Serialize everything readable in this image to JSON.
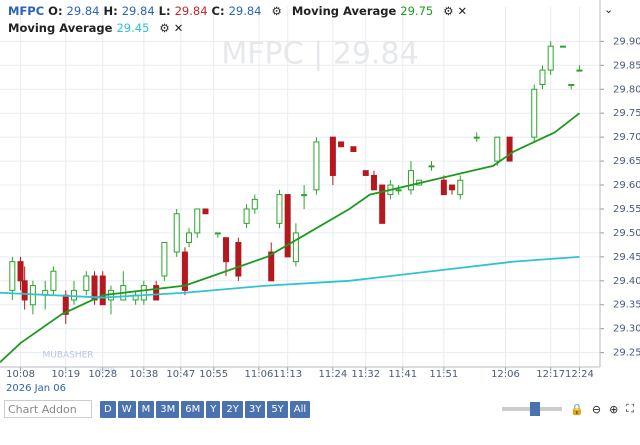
{
  "chart_data": {
    "type": "candlestick",
    "symbol": "MFPC",
    "ohlc_labels": [
      "O:",
      "H:",
      "L:",
      "C:"
    ],
    "ohlc_values": [
      29.84,
      29.84,
      29.84,
      29.84
    ],
    "watermark": "MFPC | 29.84",
    "logo": [
      "MUBASHER",
      "TRADE"
    ],
    "date_label": "2026 Jan 06",
    "up_color": "#2aa52a",
    "down_color": "#b3191e",
    "x": [
      "10:06",
      "10:08",
      "10:09",
      "10:11",
      "10:14",
      "10:16",
      "10:19",
      "10:21",
      "10:24",
      "10:26",
      "10:28",
      "10:30",
      "10:33",
      "10:36",
      "10:38",
      "10:41",
      "10:43",
      "10:46",
      "10:48",
      "10:49",
      "10:51",
      "10:53",
      "10:56",
      "10:58",
      "11:01",
      "11:03",
      "11:05",
      "11:09",
      "11:11",
      "11:13",
      "11:15",
      "11:17",
      "11:20",
      "11:24",
      "11:26",
      "11:29",
      "11:32",
      "11:34",
      "11:36",
      "11:38",
      "11:40",
      "11:43",
      "11:45",
      "11:48",
      "11:51",
      "11:53",
      "11:55",
      "11:59",
      "12:04",
      "12:07",
      "12:13",
      "12:15",
      "12:17",
      "12:20",
      "12:22",
      "12:24"
    ],
    "open": [
      29.38,
      29.44,
      29.4,
      29.35,
      29.37,
      29.38,
      29.37,
      29.36,
      29.38,
      29.41,
      29.41,
      29.36,
      29.36,
      29.36,
      29.36,
      29.39,
      29.41,
      29.46,
      29.46,
      29.48,
      29.5,
      29.55,
      29.5,
      29.49,
      29.48,
      29.52,
      29.55,
      29.46,
      29.52,
      29.58,
      29.44,
      29.58,
      29.59,
      29.7,
      29.69,
      29.68,
      29.63,
      29.62,
      29.6,
      29.58,
      29.59,
      29.59,
      29.6,
      29.64,
      29.61,
      29.6,
      29.58,
      29.7,
      29.65,
      29.7,
      29.7,
      29.81,
      29.84,
      29.89,
      29.81,
      29.84
    ],
    "high": [
      29.45,
      29.45,
      29.43,
      29.4,
      29.4,
      29.43,
      29.38,
      29.4,
      29.42,
      29.42,
      29.42,
      29.39,
      29.42,
      29.38,
      29.4,
      29.4,
      29.48,
      29.55,
      29.47,
      29.51,
      29.55,
      29.55,
      29.5,
      29.49,
      29.49,
      29.56,
      29.58,
      29.48,
      29.59,
      29.58,
      29.52,
      29.6,
      29.7,
      29.7,
      29.69,
      29.68,
      29.63,
      29.63,
      29.6,
      29.61,
      29.6,
      29.65,
      29.61,
      29.65,
      29.62,
      29.6,
      29.62,
      29.71,
      29.7,
      29.7,
      29.81,
      29.85,
      29.9,
      29.89,
      29.81,
      29.85
    ],
    "low": [
      29.36,
      29.38,
      29.34,
      29.33,
      29.34,
      29.37,
      29.31,
      29.35,
      29.37,
      29.35,
      29.35,
      29.33,
      29.36,
      29.35,
      29.35,
      29.36,
      29.4,
      29.45,
      29.37,
      29.47,
      29.49,
      29.54,
      29.49,
      29.41,
      29.4,
      29.51,
      29.54,
      29.4,
      29.51,
      29.45,
      29.43,
      29.55,
      29.58,
      29.6,
      29.68,
      29.67,
      29.62,
      29.59,
      29.52,
      29.57,
      29.58,
      29.58,
      29.6,
      29.63,
      29.58,
      29.58,
      29.57,
      29.69,
      29.64,
      29.65,
      29.69,
      29.8,
      29.83,
      29.89,
      29.8,
      29.84
    ],
    "close": [
      29.44,
      29.4,
      29.36,
      29.39,
      29.38,
      29.42,
      29.33,
      29.38,
      29.41,
      29.36,
      29.35,
      29.38,
      29.39,
      29.37,
      29.39,
      29.36,
      29.48,
      29.54,
      29.38,
      29.5,
      29.55,
      29.54,
      29.5,
      29.44,
      29.41,
      29.55,
      29.57,
      29.4,
      29.58,
      29.45,
      29.5,
      29.58,
      29.69,
      29.62,
      29.68,
      29.67,
      29.62,
      29.59,
      29.52,
      29.6,
      29.59,
      29.63,
      29.61,
      29.64,
      29.58,
      29.59,
      29.61,
      29.7,
      29.7,
      29.65,
      29.8,
      29.84,
      29.89,
      29.89,
      29.81,
      29.84
    ],
    "series": [
      {
        "name": "Moving Average",
        "legend_value": 29.75,
        "color": "#1f9a1f",
        "x": [
          "10:03",
          "10:08",
          "10:18",
          "10:28",
          "10:38",
          "10:48",
          "10:58",
          "11:08",
          "11:18",
          "11:28",
          "11:33",
          "11:38",
          "11:48",
          "11:58",
          "12:03",
          "12:08",
          "12:18",
          "12:24"
        ],
        "values": [
          29.23,
          29.27,
          29.33,
          29.37,
          29.38,
          29.39,
          29.42,
          29.45,
          29.5,
          29.55,
          29.58,
          29.59,
          29.61,
          29.63,
          29.64,
          29.67,
          29.71,
          29.75
        ]
      },
      {
        "name": "Moving Average",
        "legend_value": 29.45,
        "color": "#2ec4cf",
        "x": [
          "10:03",
          "10:28",
          "10:48",
          "11:08",
          "11:28",
          "11:48",
          "12:08",
          "12:24"
        ],
        "values": [
          29.375,
          29.365,
          29.375,
          29.39,
          29.4,
          29.42,
          29.44,
          29.45
        ]
      }
    ],
    "xlim": [
      "10:03",
      "12:29"
    ],
    "xticks": [
      "10:08",
      "10:19",
      "10:28",
      "10:38",
      "10:47",
      "10:55",
      "11:06",
      "11:13",
      "11:24",
      "11:32",
      "11:41",
      "11:51",
      "12:06",
      "12:17",
      "12:24"
    ],
    "ylim": [
      29.22,
      29.93
    ],
    "yticks": [
      29.25,
      {
        "value": 29.3,
        "label": "29.30"
      },
      29.35,
      {
        "value": 29.4,
        "label": "29.40"
      },
      29.45,
      {
        "value": 29.5,
        "label": "29.50"
      },
      29.55,
      {
        "value": 29.6,
        "label": "29.60"
      },
      29.65,
      {
        "value": 29.7,
        "label": "29.70"
      },
      29.75,
      {
        "value": 29.8,
        "label": "29.80"
      },
      29.85,
      {
        "value": 29.9,
        "label": "29.90"
      }
    ],
    "grid": true
  },
  "toolbar": {
    "addon": "Chart Addon",
    "ranges": [
      "D",
      "W",
      "M",
      "3M",
      "6M",
      "Y",
      "2Y",
      "3Y",
      "5Y",
      "All"
    ]
  }
}
